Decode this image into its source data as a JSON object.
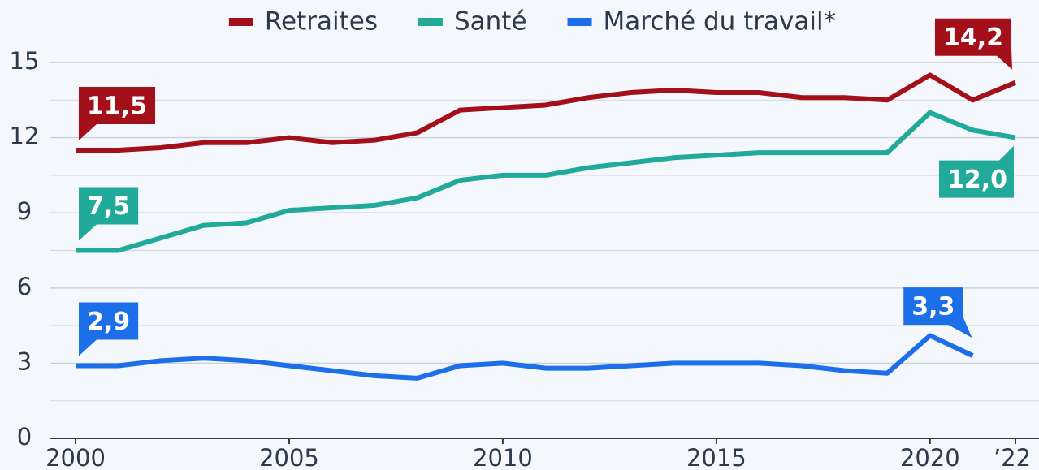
{
  "chart_data": {
    "type": "line",
    "x": [
      2000,
      2001,
      2002,
      2003,
      2004,
      2005,
      2006,
      2007,
      2008,
      2009,
      2010,
      2011,
      2012,
      2013,
      2014,
      2015,
      2016,
      2017,
      2018,
      2019,
      2020,
      2021,
      2022
    ],
    "series": [
      {
        "name": "Retraites",
        "color": "#a3101a",
        "values": [
          11.5,
          11.5,
          11.6,
          11.8,
          11.8,
          12.0,
          11.8,
          11.9,
          12.2,
          13.1,
          13.2,
          13.3,
          13.6,
          13.8,
          13.9,
          13.8,
          13.8,
          13.6,
          13.6,
          13.5,
          14.5,
          13.5,
          14.2
        ],
        "value_labels": [
          "11,5",
          null,
          null,
          null,
          null,
          null,
          null,
          null,
          null,
          null,
          null,
          null,
          null,
          null,
          null,
          null,
          null,
          null,
          null,
          null,
          null,
          null,
          "14,2"
        ]
      },
      {
        "name": "Santé",
        "color": "#21a99a",
        "values": [
          7.5,
          7.5,
          8.0,
          8.5,
          8.6,
          9.1,
          9.2,
          9.3,
          9.6,
          10.3,
          10.5,
          10.5,
          10.8,
          11.0,
          11.2,
          11.3,
          11.4,
          11.4,
          11.4,
          11.4,
          13.0,
          12.3,
          12.0
        ],
        "value_labels": [
          "7,5",
          null,
          null,
          null,
          null,
          null,
          null,
          null,
          null,
          null,
          null,
          null,
          null,
          null,
          null,
          null,
          null,
          null,
          null,
          null,
          null,
          null,
          "12,0"
        ]
      },
      {
        "name": "Marché du travail*",
        "color": "#1c6fe8",
        "values": [
          2.9,
          2.9,
          3.1,
          3.2,
          3.1,
          2.9,
          2.7,
          2.5,
          2.4,
          2.9,
          3.0,
          2.8,
          2.8,
          2.9,
          3.0,
          3.0,
          3.0,
          2.9,
          2.7,
          2.6,
          4.1,
          3.3,
          null
        ],
        "value_labels": [
          "2,9",
          null,
          null,
          null,
          null,
          null,
          null,
          null,
          null,
          null,
          null,
          null,
          null,
          null,
          null,
          null,
          null,
          null,
          null,
          null,
          null,
          "3,3",
          null
        ]
      }
    ],
    "xlim": [
      2000,
      2022
    ],
    "xticks": [
      2000,
      2005,
      2010,
      2015,
      2020,
      {
        "value": 2022,
        "label": "’22"
      }
    ],
    "ylim": [
      0,
      15
    ],
    "yticks": [
      0,
      3,
      6,
      9,
      12,
      15
    ],
    "minor_yticks": [
      1.5,
      4.5,
      7.5,
      10.5,
      13.5
    ],
    "grid": true,
    "legend": "top"
  }
}
